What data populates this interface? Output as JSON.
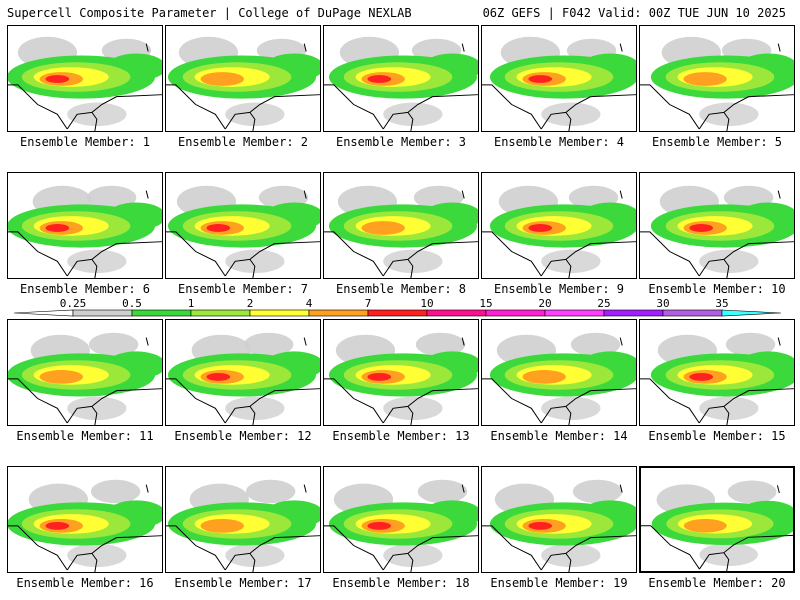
{
  "header": {
    "left": "Supercell Composite Parameter | College of DuPage NEXLAB",
    "right": "06Z GEFS | F042 Valid: 00Z TUE JUN 10 2025"
  },
  "members": [
    {
      "label": "Ensemble Member: 1"
    },
    {
      "label": "Ensemble Member: 2"
    },
    {
      "label": "Ensemble Member: 3"
    },
    {
      "label": "Ensemble Member: 4"
    },
    {
      "label": "Ensemble Member: 5"
    },
    {
      "label": "Ensemble Member: 6"
    },
    {
      "label": "Ensemble Member: 7"
    },
    {
      "label": "Ensemble Member: 8"
    },
    {
      "label": "Ensemble Member: 9"
    },
    {
      "label": "Ensemble Member: 10"
    },
    {
      "label": "Ensemble Member: 11"
    },
    {
      "label": "Ensemble Member: 12"
    },
    {
      "label": "Ensemble Member: 13"
    },
    {
      "label": "Ensemble Member: 14"
    },
    {
      "label": "Ensemble Member: 15"
    },
    {
      "label": "Ensemble Member: 16"
    },
    {
      "label": "Ensemble Member: 17"
    },
    {
      "label": "Ensemble Member: 18"
    },
    {
      "label": "Ensemble Member: 19"
    },
    {
      "label": "Ensemble Member: 20"
    }
  ],
  "colorbar": {
    "levels": [
      "0.25",
      "0.5",
      "1",
      "2",
      "4",
      "7",
      "10",
      "15",
      "20",
      "25",
      "30",
      "35"
    ],
    "colors": [
      "#cfcfcf",
      "#3bd93b",
      "#9be83b",
      "#ffff33",
      "#ffa020",
      "#ff2020",
      "#ff1090",
      "#ff20d0",
      "#ff40ff",
      "#a020ff",
      "#b060e0",
      "#40ffff"
    ]
  }
}
